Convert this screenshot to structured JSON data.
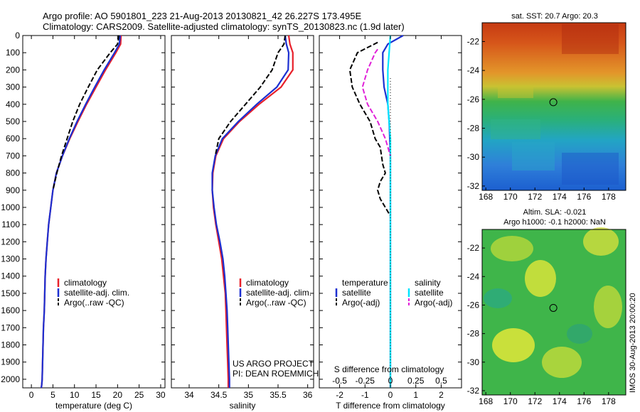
{
  "header": {
    "line1": "Argo profile: AO 5901801_223 21-Aug-2013 20130821_42 26.227S 173.495E",
    "line2": "Climatology: CARS2009. Satellite-adjusted climatology: synTS_20130823.nc (1.9d later)"
  },
  "side_stamp": "IMOS 30-Aug-2013 20:00:20",
  "credits": {
    "line1": "US ARGO PROJECT",
    "line2": "PI: DEAN ROEMMICH"
  },
  "colors": {
    "clim": "#e8202a",
    "sat": "#1c2fd1",
    "argo": "#000000",
    "sal_sat": "#00e5ff",
    "sal_argo": "#e020d8"
  },
  "chart_data": [
    {
      "type": "line",
      "xlabel": "temperature (deg C)",
      "ylabel": "",
      "xlim": [
        -2,
        31
      ],
      "ylim": [
        2050,
        0
      ],
      "xticks": [
        "0",
        "5",
        "10",
        "15",
        "20",
        "25",
        "30"
      ],
      "yticks": [
        "0",
        "100",
        "200",
        "300",
        "400",
        "500",
        "600",
        "700",
        "800",
        "900",
        "1000",
        "1100",
        "1200",
        "1300",
        "1400",
        "1500",
        "1600",
        "1700",
        "1800",
        "1900",
        "2000"
      ],
      "legend": {
        "placement": "lower-middle",
        "entries": [
          "climatology",
          "satellite-adj. clim.",
          "Argo(..raw -QC)"
        ]
      },
      "series": [
        {
          "name": "climatology",
          "style": "solid",
          "color": "#e8202a",
          "x": [
            20.8,
            20.7,
            19.6,
            17.2,
            15.0,
            12.8,
            10.8,
            8.9,
            7.2,
            5.8,
            5.0,
            4.5,
            4.0,
            3.7,
            3.4,
            3.2,
            3.1,
            3.0,
            2.8,
            2.7,
            2.6,
            2.5,
            2.4,
            2.3
          ],
          "y": [
            0,
            50,
            100,
            200,
            300,
            400,
            500,
            600,
            700,
            800,
            900,
            1000,
            1100,
            1200,
            1300,
            1400,
            1500,
            1600,
            1700,
            1800,
            1900,
            2000,
            2030,
            2050
          ]
        },
        {
          "name": "satellite-adj. clim.",
          "style": "solid",
          "color": "#1c2fd1",
          "x": [
            20.6,
            20.4,
            19.3,
            16.9,
            14.7,
            12.6,
            10.6,
            8.8,
            7.2,
            5.8,
            5.0,
            4.5,
            4.0,
            3.7,
            3.4,
            3.2,
            3.1,
            3.0,
            2.8,
            2.7,
            2.6,
            2.5,
            2.4,
            2.3
          ],
          "y": [
            0,
            50,
            100,
            200,
            300,
            400,
            500,
            600,
            700,
            800,
            900,
            1000,
            1100,
            1200,
            1300,
            1400,
            1500,
            1600,
            1700,
            1800,
            1900,
            2000,
            2030,
            2050
          ]
        },
        {
          "name": "Argo(..raw -QC)",
          "style": "dashed",
          "color": "#000000",
          "x": [
            20.3,
            20.0,
            18.3,
            15.3,
            13.2,
            11.2,
            9.6,
            8.3,
            7.0,
            5.9,
            5.0
          ],
          "y": [
            0,
            50,
            100,
            200,
            300,
            400,
            500,
            600,
            700,
            800,
            900
          ]
        }
      ]
    },
    {
      "type": "line",
      "xlabel": "salinity",
      "ylabel": "",
      "xlim": [
        33.7,
        36.1
      ],
      "ylim": [
        2050,
        0
      ],
      "xticks": [
        "34",
        "34.5",
        "35",
        "35.5",
        "36"
      ],
      "legend": {
        "placement": "lower-middle",
        "entries": [
          "climatology",
          "satellite-adj. clim.",
          "Argo(..raw -QC)"
        ]
      },
      "series": [
        {
          "name": "climatology",
          "style": "solid",
          "color": "#e8202a",
          "x": [
            35.68,
            35.7,
            35.75,
            35.75,
            35.55,
            35.18,
            34.85,
            34.58,
            34.45,
            34.4,
            34.39,
            34.41,
            34.45,
            34.5,
            34.55,
            34.58,
            34.61,
            34.62,
            34.63,
            34.64,
            34.65,
            34.66,
            34.66
          ],
          "y": [
            0,
            50,
            100,
            200,
            300,
            400,
            500,
            600,
            700,
            800,
            900,
            1000,
            1100,
            1200,
            1300,
            1400,
            1500,
            1600,
            1700,
            1800,
            1900,
            2000,
            2050
          ]
        },
        {
          "name": "satellite-adj. clim.",
          "style": "solid",
          "color": "#1c2fd1",
          "x": [
            35.62,
            35.64,
            35.68,
            35.67,
            35.48,
            35.14,
            34.83,
            34.56,
            34.44,
            34.39,
            34.39,
            34.42,
            34.46,
            34.52,
            34.57,
            34.6,
            34.62,
            34.64,
            34.65,
            34.66,
            34.67,
            34.68,
            34.68
          ],
          "y": [
            0,
            50,
            100,
            200,
            300,
            400,
            500,
            600,
            700,
            800,
            900,
            1000,
            1100,
            1200,
            1300,
            1400,
            1500,
            1600,
            1700,
            1800,
            1900,
            2000,
            2050
          ]
        },
        {
          "name": "Argo(..raw -QC)",
          "style": "dashed",
          "color": "#000000",
          "x": [
            35.62,
            35.6,
            35.5,
            35.4,
            35.2,
            34.95,
            34.7,
            34.5,
            34.44
          ],
          "y": [
            0,
            50,
            100,
            200,
            300,
            400,
            500,
            600,
            700
          ]
        }
      ]
    },
    {
      "type": "line",
      "xlabel": "T difference from climatology",
      "title": "S difference from climatology",
      "xlim": [
        -2.8,
        2.8
      ],
      "ylim": [
        2050,
        0
      ],
      "xticks": [
        "-2",
        "-1",
        "0",
        "1",
        "2"
      ],
      "top_ticks": [
        "-0.5",
        "-0.25",
        "0",
        "0.25",
        "0.5"
      ],
      "top_ticks_x": [
        -2,
        -1,
        0,
        1,
        2
      ],
      "legend": {
        "placement": "top",
        "headers": [
          "temperature",
          "salinity"
        ],
        "entries": [
          "satellite",
          "Argo(-adj)",
          "satellite",
          "Argo(-adj)"
        ]
      },
      "series": [
        {
          "name": "temperature satellite",
          "style": "solid",
          "color": "#1c2fd1",
          "x": [
            0.5,
            -0.1,
            -0.3,
            -0.3,
            -0.25,
            -0.1,
            -0.05,
            0.0,
            0.0,
            0.0,
            0.0,
            0.0,
            0.0,
            0.0,
            0.0,
            0.0
          ],
          "y": [
            0,
            50,
            100,
            200,
            300,
            400,
            500,
            700,
            900,
            1100,
            1300,
            1500,
            1700,
            1900,
            2000,
            2050
          ]
        },
        {
          "name": "temperature Argo(-adj)",
          "style": "dashed",
          "color": "#000000",
          "x": [
            -0.5,
            -0.9,
            -1.3,
            -1.6,
            -1.5,
            -1.2,
            -0.8,
            -0.6,
            -0.4,
            -0.3,
            -0.2,
            -0.4,
            -0.5,
            -0.4,
            -0.2,
            0.0
          ],
          "y": [
            40,
            70,
            100,
            200,
            300,
            400,
            500,
            600,
            650,
            750,
            800,
            850,
            900,
            950,
            1000,
            1050
          ]
        },
        {
          "name": "salinity satellite",
          "style": "solid",
          "color": "#00e5ff",
          "x": [
            0.0,
            -0.05,
            -0.1,
            -0.1,
            -0.1,
            -0.05,
            0.0,
            0.0,
            0.0,
            0.0,
            0.0
          ],
          "y": [
            0,
            100,
            200,
            300,
            400,
            500,
            600,
            800,
            1200,
            1600,
            2050
          ]
        },
        {
          "name": "salinity Argo(-adj)",
          "style": "dashed",
          "color": "#e020d8",
          "x": [
            -0.5,
            -0.6,
            -0.9,
            -1.1,
            -0.9,
            -0.5,
            -0.2,
            0.0
          ],
          "y": [
            80,
            100,
            200,
            300,
            400,
            500,
            600,
            700
          ]
        }
      ]
    },
    {
      "type": "heatmap",
      "title": "sat. SST: 20.7 Argo: 20.3",
      "xlim": [
        167.7,
        179.4
      ],
      "ylim": [
        -32.3,
        -20.7
      ],
      "xticks": [
        "168",
        "170",
        "172",
        "174",
        "176",
        "178"
      ],
      "yticks": [
        "-22",
        "-24",
        "-26",
        "-28",
        "-30",
        "-32"
      ],
      "marker": {
        "x": 173.5,
        "y": -26.2
      }
    },
    {
      "type": "heatmap",
      "title": "Altim. SLA: -0.021",
      "subtitle": "Argo h1000: -0.1 h2000: NaN",
      "xlim": [
        167.7,
        179.4
      ],
      "ylim": [
        -32.3,
        -20.7
      ],
      "xticks": [
        "168",
        "170",
        "172",
        "174",
        "176",
        "178"
      ],
      "yticks": [
        "-22",
        "-24",
        "-26",
        "-28",
        "-30",
        "-32"
      ],
      "marker": {
        "x": 173.5,
        "y": -26.2
      }
    }
  ]
}
